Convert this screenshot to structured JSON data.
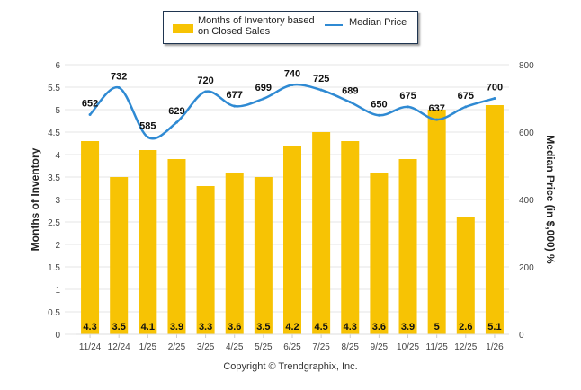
{
  "chart_data": {
    "type": "bar+line",
    "categories": [
      "11/24",
      "12/24",
      "1/25",
      "2/25",
      "3/25",
      "4/25",
      "5/25",
      "6/25",
      "7/25",
      "8/25",
      "9/25",
      "10/25",
      "11/25",
      "12/25",
      "1/26"
    ],
    "series": [
      {
        "name": "Months of Inventory based on Closed Sales",
        "type": "bar",
        "axis": "left",
        "values": [
          4.3,
          3.5,
          4.1,
          3.9,
          3.3,
          3.6,
          3.5,
          4.2,
          4.5,
          4.3,
          3.6,
          3.9,
          5,
          2.6,
          5.1
        ],
        "labels": [
          "4.3",
          "3.5",
          "4.1",
          "3.9",
          "3.3",
          "3.6",
          "3.5",
          "4.2",
          "4.5",
          "4.3",
          "3.6",
          "3.9",
          "5",
          "2.6",
          "5.1"
        ],
        "color": "#f7c304"
      },
      {
        "name": "Median Price",
        "type": "line",
        "axis": "right",
        "values": [
          652,
          732,
          585,
          629,
          720,
          677,
          699,
          740,
          725,
          689,
          650,
          675,
          637,
          675,
          700
        ],
        "color": "#2f8ad3"
      }
    ],
    "y_left": {
      "label": "Months of Inventory",
      "range": [
        0,
        6
      ],
      "ticks": [
        "0",
        "0.5",
        "1",
        "1.5",
        "2",
        "2.5",
        "3",
        "3.5",
        "4",
        "4.5",
        "5",
        "5.5",
        "6"
      ]
    },
    "y_right": {
      "label": "Median Price (in $,000) %",
      "range": [
        0,
        800
      ],
      "ticks": [
        "0",
        "200",
        "400",
        "600",
        "800"
      ]
    },
    "grid": true,
    "legend": "top-center",
    "legend_labels": {
      "bar": "Months of Inventory based on Closed Sales",
      "bar_line1": "Months of Inventory based",
      "bar_line2": "on Closed Sales",
      "line": "Median Price"
    }
  },
  "footer": {
    "copyright": "Copyright © Trendgraphix, Inc."
  }
}
